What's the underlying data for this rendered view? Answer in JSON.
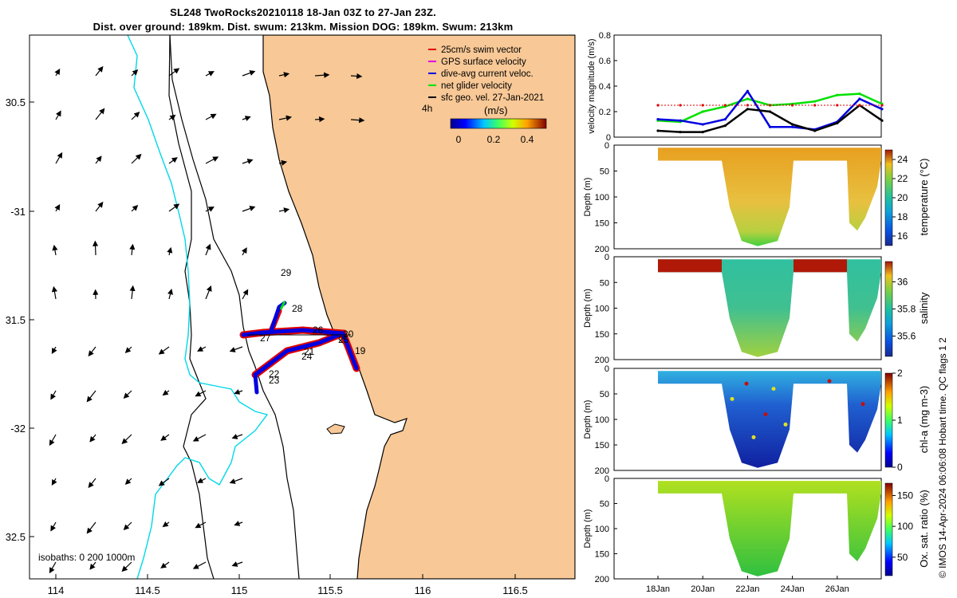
{
  "header": {
    "title_line1": "SL248 TwoRocks20210118 18-Jan 03Z to 27-Jan 23Z.",
    "title_line2": "Dist. over ground: 189km. Dist. swum: 213km. Mission DOG: 189km. Swum: 213km"
  },
  "colors": {
    "land": "#f8c896",
    "isobath_200": "#00d8e8",
    "swim_vector": "#e00000",
    "gps_velocity": "#e000e0",
    "dive_avg": "#0000e0",
    "net_velocity": "#00e000",
    "sfc_geo": "#000000"
  },
  "map": {
    "lon_ticks": [
      "114",
      "114.5",
      "115",
      "115.5",
      "116",
      "116.5"
    ],
    "lat_ticks": [
      "30.5",
      "-31",
      "31.5",
      "-32",
      "32.5"
    ],
    "legend": {
      "items": [
        {
          "label": "25cm/s swim vector",
          "color": "#e00000"
        },
        {
          "label": "GPS surface velocity",
          "color": "#e000e0"
        },
        {
          "label": "dive-avg current veloc.",
          "color": "#0000e0"
        },
        {
          "label": "net glider velocity",
          "color": "#00e000"
        },
        {
          "label": "sfc geo. vel. 27-Jan-2021",
          "color": "#000000"
        }
      ],
      "interval_label": "4h",
      "colorbar_title": "(m/s)",
      "colorbar_ticks": [
        "0",
        "0.2",
        "0.4"
      ]
    },
    "day_labels": [
      "29",
      "28",
      "26",
      "20",
      "25",
      "19",
      "27",
      "21",
      "24",
      "22",
      "23"
    ],
    "isobath_label": "isobaths: 0   200  1000m"
  },
  "chart_data": [
    {
      "type": "line",
      "ylabel": "velocity magnitude (m/s)",
      "ylim": [
        0,
        0.8
      ],
      "yticks": [
        "0",
        "0.2",
        "0.4",
        "0.6",
        "0.8"
      ],
      "x_days": [
        18,
        19,
        20,
        21,
        22,
        23,
        24,
        25,
        26,
        27,
        28
      ],
      "series": [
        {
          "name": "net glider velocity",
          "values": [
            0.13,
            0.12,
            0.2,
            0.24,
            0.3,
            0.25,
            0.26,
            0.28,
            0.33,
            0.34,
            0.26
          ]
        },
        {
          "name": "dive-avg current veloc.",
          "values": [
            0.14,
            0.13,
            0.1,
            0.14,
            0.36,
            0.08,
            0.08,
            0.06,
            0.12,
            0.3,
            0.22
          ]
        },
        {
          "name": "sfc geo. vel.",
          "values": [
            0.05,
            0.04,
            0.04,
            0.09,
            0.22,
            0.2,
            0.1,
            0.05,
            0.11,
            0.25,
            0.13
          ]
        },
        {
          "name": "25cm/s swim vector",
          "values": [
            0.25,
            0.25,
            0.25,
            0.25,
            0.25,
            0.25,
            0.25,
            0.25,
            0.25,
            0.25,
            0.25
          ]
        }
      ]
    },
    {
      "type": "heatmap",
      "ylabel": "Depth (m)",
      "ylim": [
        0,
        200
      ],
      "yticks": [
        "0",
        "50",
        "100",
        "150",
        "200"
      ],
      "colorbar_label": "temperature (°C)",
      "clim": [
        15,
        25
      ],
      "colorbar_ticks": [
        "16",
        "18",
        "20",
        "22",
        "24"
      ]
    },
    {
      "type": "heatmap",
      "ylabel": "Depth (m)",
      "ylim": [
        0,
        200
      ],
      "yticks": [
        "0",
        "50",
        "100",
        "150",
        "200"
      ],
      "colorbar_label": "salinity",
      "clim": [
        35.45,
        36.15
      ],
      "colorbar_ticks": [
        "35.6",
        "35.8",
        "36"
      ]
    },
    {
      "type": "heatmap",
      "ylabel": "Depth (m)",
      "ylim": [
        0,
        200
      ],
      "yticks": [
        "0",
        "50",
        "100",
        "150",
        "200"
      ],
      "colorbar_label": "chl-a (mg m-3)",
      "clim": [
        0,
        2
      ],
      "colorbar_ticks": [
        "0",
        "1",
        "2"
      ]
    },
    {
      "type": "heatmap",
      "ylabel": "Depth (m)",
      "ylim": [
        0,
        200
      ],
      "yticks": [
        "0",
        "50",
        "100",
        "150",
        "200"
      ],
      "colorbar_label": "Ox. sat. ratio (%)",
      "clim": [
        20,
        170
      ],
      "colorbar_ticks": [
        "50",
        "100",
        "150"
      ],
      "xticks": [
        "18Jan",
        "20Jan",
        "22Jan",
        "24Jan",
        "26Jan"
      ]
    }
  ],
  "footer": {
    "credit": "© IMOS 14-Apr-2024 06:06:08 Hobart time. QC flags 1  2"
  }
}
